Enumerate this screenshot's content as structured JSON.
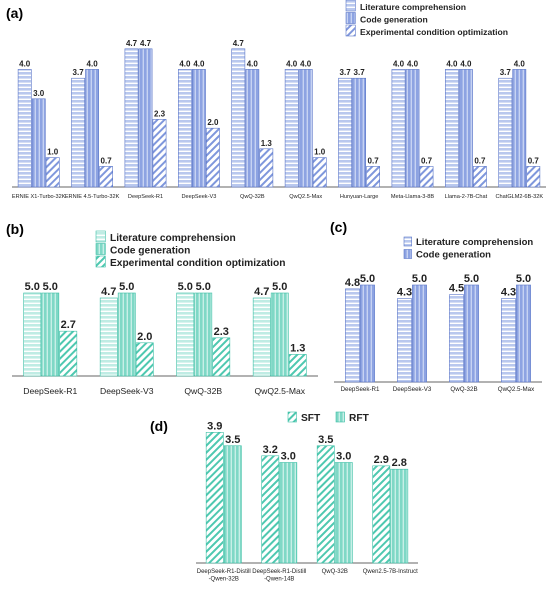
{
  "colors": {
    "blue_fill": "#b9c8ee",
    "blue_stripe": "#ffffff",
    "blue_edge": "#5a76c8",
    "blue_dark": "#7f97dc",
    "teal_fill": "#bfece4",
    "teal_stripe": "#ffffff",
    "teal_edge": "#3cbfa6",
    "teal_dark": "#74d4c2",
    "axis": "#666666"
  },
  "panels": [
    {
      "label": "(a)",
      "legend": [
        "Literature comprehension",
        "Code generation",
        "Experimental condition optimization"
      ],
      "chart_data": {
        "type": "bar",
        "categories": [
          "ERNIE X1-Turbo-32K",
          "ERNIE 4.5-Turbo-32K",
          "DeepSeek-R1",
          "DeepSeek-V3",
          "QwQ-32B",
          "QwQ2.5-Max",
          "Hunyuan-Large",
          "Meta-Llama-3-8B",
          "Llama-2-7B-Chat",
          "ChatGLM2-6B-32K"
        ],
        "series": [
          {
            "name": "Literature comprehension",
            "values": [
              4.0,
              3.7,
              4.7,
              4.0,
              4.7,
              4.0,
              3.7,
              4.0,
              4.0,
              3.7
            ]
          },
          {
            "name": "Code generation",
            "values": [
              3.0,
              4.0,
              4.7,
              4.0,
              4.0,
              4.0,
              3.7,
              4.0,
              4.0,
              4.0
            ]
          },
          {
            "name": "Experimental condition optimization",
            "values": [
              1.0,
              0.7,
              2.3,
              2.0,
              1.3,
              1.0,
              0.7,
              0.7,
              0.7,
              0.7
            ]
          }
        ],
        "ylim": [
          0,
          5
        ]
      }
    },
    {
      "label": "(b)",
      "legend": [
        "Literature comprehension",
        "Code generation",
        "Experimental condition optimization"
      ],
      "chart_data": {
        "type": "bar",
        "categories": [
          "DeepSeek-R1",
          "DeepSeek-V3",
          "QwQ-32B",
          "QwQ2.5-Max"
        ],
        "series": [
          {
            "name": "Literature comprehension",
            "values": [
              5.0,
              4.7,
              5.0,
              4.7
            ]
          },
          {
            "name": "Code generation",
            "values": [
              5.0,
              5.0,
              5.0,
              5.0
            ]
          },
          {
            "name": "Experimental condition optimization",
            "values": [
              2.7,
              2.0,
              2.3,
              1.3
            ]
          }
        ],
        "ylim": [
          0,
          5
        ]
      }
    },
    {
      "label": "(c)",
      "legend": [
        "Literature comprehension",
        "Code generation"
      ],
      "chart_data": {
        "type": "bar",
        "categories": [
          "DeepSeek-R1",
          "DeepSeek-V3",
          "QwQ-32B",
          "QwQ2.5-Max"
        ],
        "series": [
          {
            "name": "Literature comprehension",
            "values": [
              4.8,
              4.3,
              4.5,
              4.3
            ]
          },
          {
            "name": "Code generation",
            "values": [
              5.0,
              5.0,
              5.0,
              5.0
            ]
          }
        ],
        "ylim": [
          0,
          5
        ]
      }
    },
    {
      "label": "(d)",
      "legend": [
        "SFT",
        "RFT"
      ],
      "chart_data": {
        "type": "bar",
        "categories": [
          "DeepSeek-R1-Distill -Qwen-32B",
          "DeepSeek-R1-Distill -Qwen-14B",
          "QwQ-32B",
          "Qwen2.5-7B-Instruct"
        ],
        "series": [
          {
            "name": "SFT",
            "values": [
              3.9,
              3.2,
              3.5,
              2.9
            ]
          },
          {
            "name": "RFT",
            "values": [
              3.5,
              3.0,
              3.0,
              2.8
            ]
          }
        ],
        "ylim": [
          0,
          4
        ]
      }
    }
  ]
}
